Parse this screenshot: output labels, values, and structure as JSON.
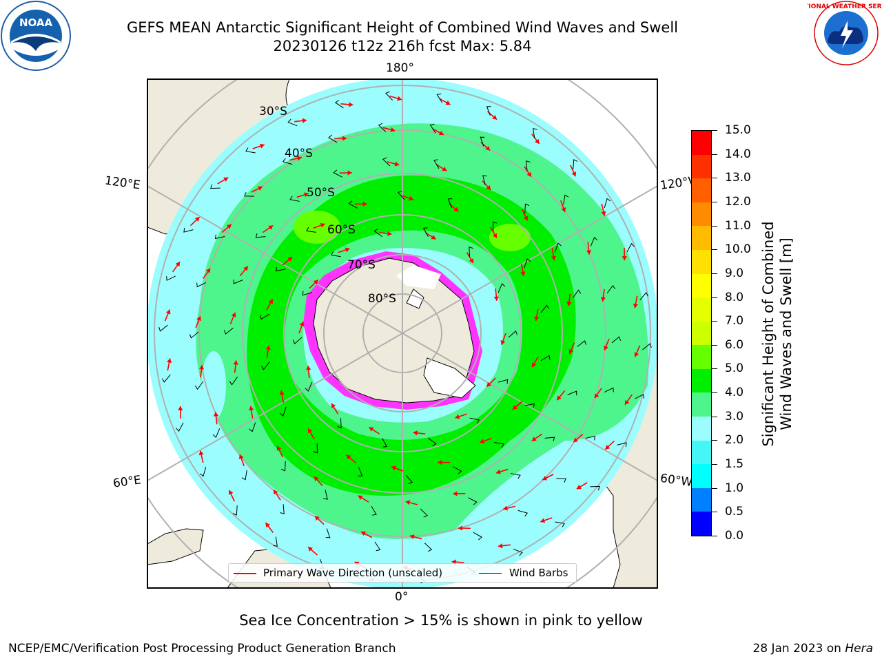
{
  "title": {
    "line1": "GEFS MEAN Antarctic Significant Height of Combined Wind Waves and Swell",
    "line2": "20230126 t12z 216h fcst   Max: 5.84"
  },
  "logos": {
    "left": "noaa-logo",
    "left_text": "NOAA",
    "right": "national-weather-service-logo",
    "right_text": "NATIONAL WEATHER SERVICE"
  },
  "map": {
    "projection": "south-polar-stereographic",
    "lon_labels": {
      "top": "180°",
      "bottom": "0°",
      "upper_left": "120°E",
      "upper_right": "120°W",
      "lower_left": "60°E",
      "lower_right": "60°W"
    },
    "lat_labels": [
      "30°S",
      "40°S",
      "50°S",
      "60°S",
      "70°S",
      "80°S"
    ],
    "colors": {
      "land": "#efebdc",
      "ocean_low": "#9bfdfd",
      "ocean_mid": "#4ef58d",
      "ocean_high": "#00ee00",
      "ocean_peak": "#66ff00",
      "sea_ice": "#ff33ff",
      "grid": "#b0b0b0",
      "wave_arrow": "#ff0000",
      "wind_barb": "#000000"
    }
  },
  "legend": {
    "primary_wave": "Primary Wave Direction (unscaled)",
    "wind_barbs": "Wind Barbs"
  },
  "colorbar": {
    "title_line1": "Significant Height of Combined",
    "title_line2": "Wind Waves and Swell [m]",
    "ticks": [
      "0.0",
      "0.5",
      "1.0",
      "1.5",
      "2.0",
      "3.0",
      "4.0",
      "5.0",
      "6.0",
      "7.0",
      "8.0",
      "9.0",
      "10.0",
      "11.0",
      "12.0",
      "13.0",
      "14.0",
      "15.0"
    ],
    "colors": [
      "#0000ff",
      "#0080ff",
      "#00ffff",
      "#46f6f6",
      "#9bfdfd",
      "#4ef58d",
      "#00ee00",
      "#66ff00",
      "#ccff00",
      "#e6ff00",
      "#ffff00",
      "#ffe000",
      "#ffbb00",
      "#ff8c00",
      "#ff5f00",
      "#ff3000",
      "#ff0000"
    ]
  },
  "caption": "Sea Ice Concentration > 15% is shown in pink to yellow",
  "footer": {
    "left": "NCEP/EMC/Verification Post Processing Product Generation Branch",
    "right_prefix": "28 Jan 2023 on ",
    "right_host": "Hera"
  }
}
